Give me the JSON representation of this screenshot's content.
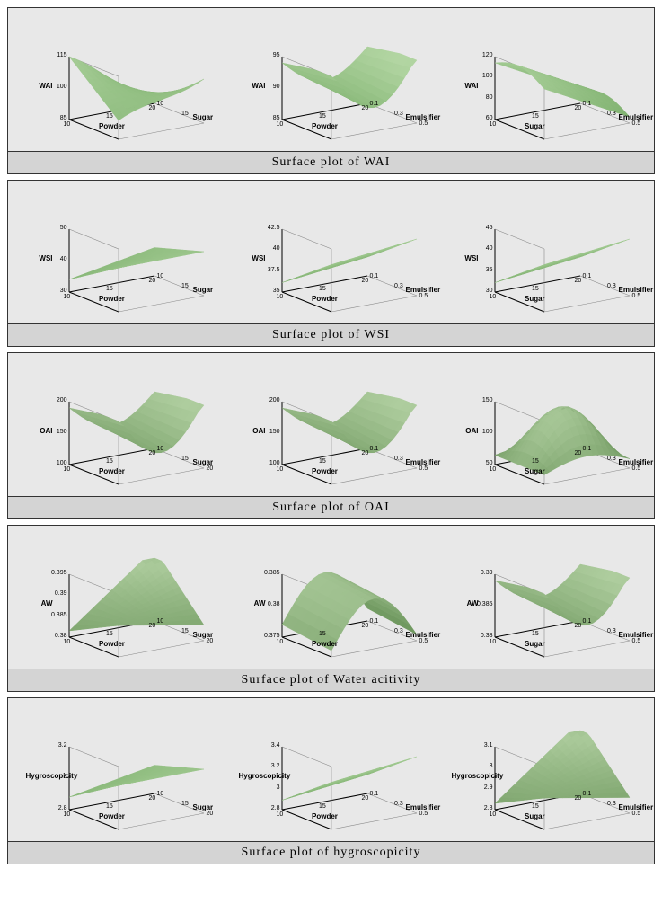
{
  "sections": [
    {
      "caption": "Surface plot of WAI",
      "plots": [
        {
          "z_label": "WAI",
          "x_label": "Powder",
          "y_label": "Sugar",
          "x_range": [
            10,
            20
          ],
          "x_ticks": [
            10,
            15,
            20
          ],
          "y_range": [
            10,
            20
          ],
          "y_ticks": [
            10,
            15
          ],
          "z_range": [
            85,
            115
          ],
          "z_ticks": [
            85,
            100,
            115
          ],
          "surface_type": "saddle-mild",
          "surface_color": "#4a8c3a",
          "highlight_color": "#d8f0c8"
        },
        {
          "z_label": "WAI",
          "x_label": "Powder",
          "y_label": "Emulsifier",
          "x_range": [
            10,
            20
          ],
          "x_ticks": [
            10,
            15,
            20
          ],
          "y_range": [
            0.1,
            0.5
          ],
          "y_ticks": [
            0.1,
            0.3,
            0.5
          ],
          "z_range": [
            85,
            95
          ],
          "z_ticks": [
            85,
            90,
            95
          ],
          "surface_type": "valley",
          "surface_color": "#4a8c3a",
          "highlight_color": "#d8f0c8"
        },
        {
          "z_label": "WAI",
          "x_label": "Sugar",
          "y_label": "Emulsifier",
          "x_range": [
            10,
            20
          ],
          "x_ticks": [
            10,
            15,
            20
          ],
          "y_range": [
            0.1,
            0.5
          ],
          "y_ticks": [
            0.1,
            0.3,
            0.5
          ],
          "z_range": [
            60,
            120
          ],
          "z_ticks": [
            60,
            80,
            100,
            120
          ],
          "surface_type": "slope-down",
          "surface_color": "#4a8c3a",
          "highlight_color": "#d8f0c8"
        }
      ]
    },
    {
      "caption": "Surface plot of WSI",
      "plots": [
        {
          "z_label": "WSI",
          "x_label": "Powder",
          "y_label": "Sugar",
          "x_range": [
            10,
            20
          ],
          "x_ticks": [
            10,
            15,
            20
          ],
          "y_range": [
            10,
            20
          ],
          "y_ticks": [
            10,
            15
          ],
          "z_range": [
            30,
            50
          ],
          "z_ticks": [
            30,
            40,
            50
          ],
          "surface_type": "tilt-plane",
          "surface_color": "#4a8c3a",
          "highlight_color": "#d8f0c8"
        },
        {
          "z_label": "WSI",
          "x_label": "Powder",
          "y_label": "Emulsifier",
          "x_range": [
            10,
            20
          ],
          "x_ticks": [
            10,
            15,
            20
          ],
          "y_range": [
            0.1,
            0.5
          ],
          "y_ticks": [
            0.1,
            0.3,
            0.5
          ],
          "z_range": [
            35,
            42.5
          ],
          "z_ticks": [
            35.0,
            37.5,
            40.0,
            42.5
          ],
          "surface_type": "slope-up",
          "surface_color": "#4a8c3a",
          "highlight_color": "#d8f0c8"
        },
        {
          "z_label": "WSI",
          "x_label": "Sugar",
          "y_label": "Emulsifier",
          "x_range": [
            10,
            20
          ],
          "x_ticks": [
            10,
            15,
            20
          ],
          "y_range": [
            0.1,
            0.5
          ],
          "y_ticks": [
            0.1,
            0.3,
            0.5
          ],
          "z_range": [
            30,
            45
          ],
          "z_ticks": [
            30,
            35,
            40,
            45
          ],
          "surface_type": "slope-up",
          "surface_color": "#4a8c3a",
          "highlight_color": "#d8f0c8"
        }
      ]
    },
    {
      "caption": "Surface plot of OAI",
      "plots": [
        {
          "z_label": "OAI",
          "x_label": "Powder",
          "y_label": "Sugar",
          "x_range": [
            10,
            20
          ],
          "x_ticks": [
            10,
            15,
            20
          ],
          "y_range": [
            10,
            20
          ],
          "y_ticks": [
            10,
            15,
            20
          ],
          "z_range": [
            100,
            200
          ],
          "z_ticks": [
            100,
            150,
            200
          ],
          "surface_type": "valley",
          "surface_color": "#3a6c2a",
          "highlight_color": "#d8f0c8"
        },
        {
          "z_label": "OAI",
          "x_label": "Powder",
          "y_label": "Emulsifier",
          "x_range": [
            10,
            20
          ],
          "x_ticks": [
            10,
            15,
            20
          ],
          "y_range": [
            0.1,
            0.5
          ],
          "y_ticks": [
            0.1,
            0.3,
            0.5
          ],
          "z_range": [
            100,
            200
          ],
          "z_ticks": [
            100,
            150,
            200
          ],
          "surface_type": "valley",
          "surface_color": "#3a6c2a",
          "highlight_color": "#d8f0c8"
        },
        {
          "z_label": "OAI",
          "x_label": "Sugar",
          "y_label": "Emulsifier",
          "x_range": [
            10,
            20
          ],
          "x_ticks": [
            10,
            15,
            20
          ],
          "y_range": [
            0.1,
            0.5
          ],
          "y_ticks": [
            0.1,
            0.3,
            0.5
          ],
          "z_range": [
            50,
            150
          ],
          "z_ticks": [
            50,
            100,
            150
          ],
          "surface_type": "dome",
          "surface_color": "#3a6c2a",
          "highlight_color": "#d8f0c8"
        }
      ]
    },
    {
      "caption": "Surface plot of Water acitivity",
      "plots": [
        {
          "z_label": "AW",
          "x_label": "Powder",
          "y_label": "Sugar",
          "x_range": [
            10,
            20
          ],
          "x_ticks": [
            10,
            15,
            20
          ],
          "y_range": [
            10,
            20
          ],
          "y_ticks": [
            10,
            15,
            20
          ],
          "z_range": [
            0.38,
            0.395
          ],
          "z_ticks": [
            0.38,
            0.385,
            0.39,
            0.395
          ],
          "surface_type": "twist",
          "surface_color": "#3a6c2a",
          "highlight_color": "#d8f0c8"
        },
        {
          "z_label": "AW",
          "x_label": "Powder",
          "y_label": "Emulsifier",
          "x_range": [
            10,
            20
          ],
          "x_ticks": [
            10,
            15,
            20
          ],
          "y_range": [
            0.1,
            0.5
          ],
          "y_ticks": [
            0.1,
            0.3,
            0.5
          ],
          "z_range": [
            0.375,
            0.385
          ],
          "z_ticks": [
            0.375,
            0.38,
            0.385
          ],
          "surface_type": "ridge",
          "surface_color": "#3a6c2a",
          "highlight_color": "#d8f0c8"
        },
        {
          "z_label": "AW",
          "x_label": "Sugar",
          "y_label": "Emulsifier",
          "x_range": [
            10,
            20
          ],
          "x_ticks": [
            10,
            15,
            20
          ],
          "y_range": [
            0.1,
            0.5
          ],
          "y_ticks": [
            0.1,
            0.3,
            0.5
          ],
          "z_range": [
            0.38,
            0.39
          ],
          "z_ticks": [
            0.38,
            0.385,
            0.39
          ],
          "surface_type": "valley",
          "surface_color": "#3a6c2a",
          "highlight_color": "#d8f0c8"
        }
      ]
    },
    {
      "caption": "Surface plot of hygroscopicity",
      "plots": [
        {
          "z_label": "Hygroscopicity",
          "x_label": "Powder",
          "y_label": "Sugar",
          "x_range": [
            10,
            20
          ],
          "x_ticks": [
            10,
            15,
            20
          ],
          "y_range": [
            10,
            20
          ],
          "y_ticks": [
            10,
            15,
            20
          ],
          "z_range": [
            2.8,
            3.2
          ],
          "z_ticks": [
            2.8,
            3.0,
            3.2
          ],
          "surface_type": "tilt-plane",
          "surface_color": "#4a8c3a",
          "highlight_color": "#d8f0c8"
        },
        {
          "z_label": "Hygroscopicity",
          "x_label": "Powder",
          "y_label": "Emulsifier",
          "x_range": [
            10,
            20
          ],
          "x_ticks": [
            10,
            15,
            20
          ],
          "y_range": [
            0.1,
            0.5
          ],
          "y_ticks": [
            0.1,
            0.3,
            0.5
          ],
          "z_range": [
            2.8,
            3.4
          ],
          "z_ticks": [
            2.8,
            3.0,
            3.2,
            3.4
          ],
          "surface_type": "slope-up",
          "surface_color": "#4a8c3a",
          "highlight_color": "#d8f0c8"
        },
        {
          "z_label": "Hygroscopicity",
          "x_label": "Sugar",
          "y_label": "Emulsifier",
          "x_range": [
            10,
            20
          ],
          "x_ticks": [
            10,
            15,
            20
          ],
          "y_range": [
            0.1,
            0.5
          ],
          "y_ticks": [
            0.1,
            0.3,
            0.5
          ],
          "z_range": [
            2.8,
            3.1
          ],
          "z_ticks": [
            2.8,
            2.9,
            3.0,
            3.1
          ],
          "surface_type": "twist",
          "surface_color": "#3a6c2a",
          "highlight_color": "#d8f0c8"
        }
      ]
    }
  ],
  "background_color": "#e8e8e8",
  "caption_bg": "#d4d4d4",
  "border_color": "#333333",
  "axis_color": "#000000",
  "font_family": "Arial, sans-serif",
  "caption_font_family": "Georgia, serif",
  "caption_fontsize": 14,
  "axis_label_fontsize": 8,
  "tick_fontsize": 7
}
